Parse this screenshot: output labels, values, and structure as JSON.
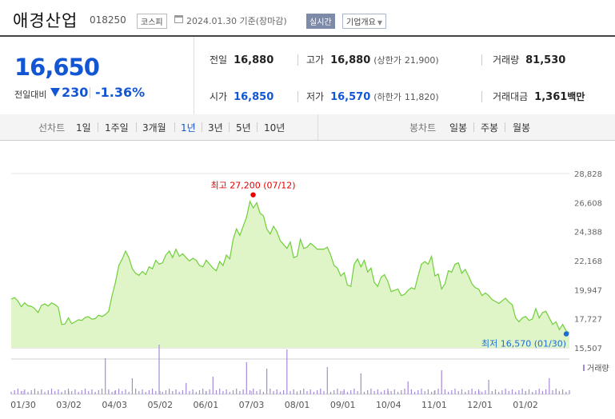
{
  "header": {
    "company": "애경산업",
    "code": "018250",
    "market": "코스피",
    "date": "2024.01.30 기준(장마감)",
    "realtime_label": "실시간",
    "overview_label": "기업개요"
  },
  "summary": {
    "price": "16,650",
    "prev_label": "전일대비",
    "change_amount": "230",
    "change_percent": "-1.36%",
    "prev_close_label": "전일",
    "prev_close": "16,880",
    "high_label": "고가",
    "high": "16,880",
    "upper_limit_label": "(상한가",
    "upper_limit": "21,900)",
    "volume_label": "거래량",
    "volume": "81,530",
    "open_label": "시가",
    "open": "16,850",
    "low_label": "저가",
    "low": "16,570",
    "lower_limit_label": "(하한가",
    "lower_limit": "11,820)",
    "trade_value_label": "거래대금",
    "trade_value": "1,361",
    "trade_value_unit": "백만"
  },
  "periods": {
    "line_label": "선차트",
    "line_items": [
      "1일",
      "1주일",
      "3개월",
      "1년",
      "3년",
      "5년",
      "10년"
    ],
    "active": "1년",
    "candle_label": "봉차트",
    "candle_items": [
      "일봉",
      "주봉",
      "월봉"
    ]
  },
  "colors": {
    "accent": "#1356d4",
    "line": "#6fcf3b",
    "area": "#dff5c8",
    "high_marker": "#e60000",
    "low_marker": "#1e6bd6",
    "volume": "#a58bd6"
  },
  "chart_data": {
    "type": "area",
    "y_ticks": [
      "28,828",
      "26,608",
      "24,388",
      "22,168",
      "19,947",
      "17,727",
      "15,507"
    ],
    "ylim": [
      15507,
      28828
    ],
    "x_ticks": [
      "01/30",
      "03/02",
      "04/03",
      "05/02",
      "06/01",
      "07/03",
      "08/01",
      "09/01",
      "10/04",
      "11/01",
      "12/01",
      "01/02"
    ],
    "annotations": {
      "high_label": "최고 27,200 (07/12)",
      "high_value": 27200,
      "low_label": "최저 16,570 (01/30)",
      "low_value": 16570
    },
    "volume_label": "거래량",
    "series": [
      {
        "values": [
          19230,
          19350,
          19080,
          18650,
          18950,
          18720,
          18680,
          18510,
          18200,
          18750,
          18860,
          18700,
          18950,
          18820,
          18600,
          17300,
          17330,
          17800,
          17350,
          17500,
          17650,
          17600,
          17820,
          17890,
          17700,
          17740,
          18000,
          17900,
          18050,
          18300,
          19500,
          20500,
          21800,
          22300,
          22900,
          22400,
          21550,
          21200,
          21050,
          21350,
          21100,
          21700,
          21550,
          22200,
          21900,
          22000,
          22600,
          22900,
          22400,
          23050,
          22500,
          22700,
          22400,
          22150,
          22350,
          22200,
          21800,
          21700,
          22200,
          21900,
          21600,
          21400,
          22100,
          21800,
          22600,
          22300,
          23800,
          24600,
          24100,
          24800,
          25500,
          26700,
          26200,
          26600,
          25800,
          25600,
          24600,
          24200,
          24800,
          24400,
          23700,
          23400,
          23100,
          23600,
          22400,
          22500,
          23800,
          23100,
          23200,
          23500,
          23300,
          23050,
          23050,
          23050,
          23200,
          22600,
          21800,
          21600,
          21000,
          21250,
          20300,
          20200,
          21900,
          22300,
          21700,
          22200,
          21300,
          21600,
          20500,
          20200,
          20900,
          21100,
          20600,
          19800,
          19900,
          20000,
          19500,
          19600,
          19900,
          20100,
          20000,
          21000,
          21900,
          22100,
          21900,
          22500,
          21000,
          21150,
          20000,
          20400,
          21400,
          21300,
          21900,
          22000,
          21200,
          21500,
          21000,
          20400,
          20100,
          20000,
          19500,
          19700,
          19500,
          19200,
          19050,
          18900,
          19100,
          19300,
          19000,
          18800,
          17800,
          17500,
          17800,
          17900,
          17600,
          17700,
          18500,
          17800,
          18200,
          18300,
          17800,
          17300,
          17500,
          16900,
          17300,
          16800,
          16650
        ]
      }
    ]
  }
}
